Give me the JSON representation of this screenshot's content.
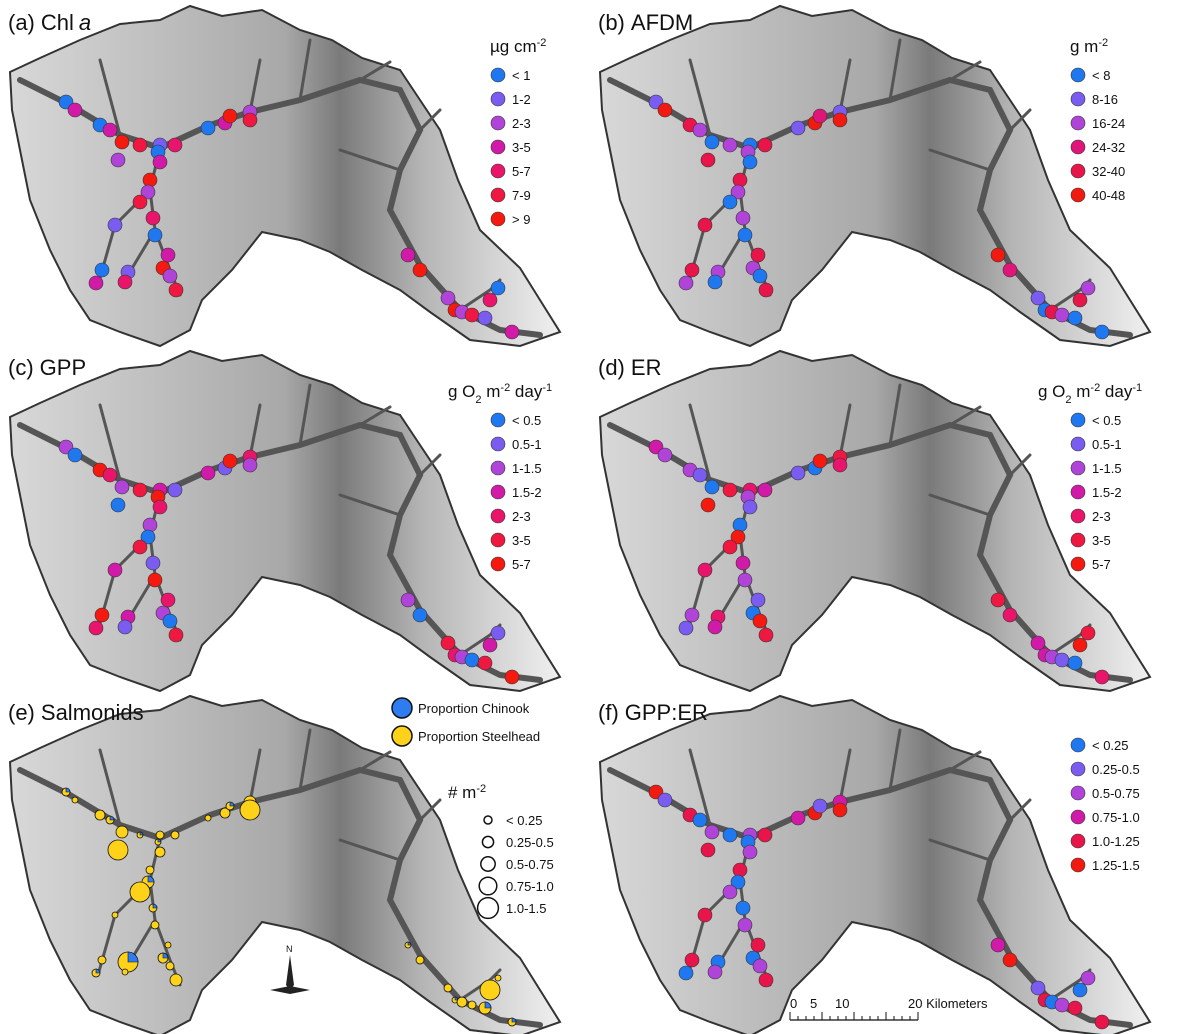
{
  "panels": [
    {
      "tag": "(a)",
      "title": "Chl",
      "title_italic": "a",
      "unit": [
        {
          "text": "µg cm"
        },
        {
          "sup": "-2"
        }
      ],
      "legend": [
        {
          "label": "< 1",
          "color": "#1f78f0"
        },
        {
          "label": "1-2",
          "color": "#7a5cf0"
        },
        {
          "label": "2-3",
          "color": "#b044d8"
        },
        {
          "label": "3-5",
          "color": "#d21aa8"
        },
        {
          "label": "5-7",
          "color": "#e8156a"
        },
        {
          "label": "7-9",
          "color": "#ee1840"
        },
        {
          "label": "> 9",
          "color": "#f51a10"
        }
      ]
    },
    {
      "tag": "(b)",
      "title": "AFDM",
      "unit": [
        {
          "text": "g m"
        },
        {
          "sup": "-2"
        }
      ],
      "legend": [
        {
          "label": "< 8",
          "color": "#1f78f0"
        },
        {
          "label": "8-16",
          "color": "#7a5cf0"
        },
        {
          "label": "16-24",
          "color": "#b044d8"
        },
        {
          "label": "24-32",
          "color": "#e0157a"
        },
        {
          "label": "32-40",
          "color": "#e8154a"
        },
        {
          "label": "40-48",
          "color": "#f01a10"
        }
      ]
    },
    {
      "tag": "(c)",
      "title": "GPP",
      "unit": [
        {
          "text": "g O"
        },
        {
          "sub": "2"
        },
        {
          "text": " m"
        },
        {
          "sup": "-2"
        },
        {
          "text": " day"
        },
        {
          "sup": "-1"
        }
      ],
      "legend": [
        {
          "label": "< 0.5",
          "color": "#1f78f0"
        },
        {
          "label": "0.5-1",
          "color": "#7a5cf0"
        },
        {
          "label": "1-1.5",
          "color": "#b044d8"
        },
        {
          "label": "1.5-2",
          "color": "#d21aa8"
        },
        {
          "label": "2-3",
          "color": "#e8156a"
        },
        {
          "label": "3-5",
          "color": "#ee1840"
        },
        {
          "label": "5-7",
          "color": "#f51a10"
        }
      ]
    },
    {
      "tag": "(d)",
      "title": "ER",
      "unit": [
        {
          "text": "g O"
        },
        {
          "sub": "2"
        },
        {
          "text": " m"
        },
        {
          "sup": "-2"
        },
        {
          "text": " day"
        },
        {
          "sup": "-1"
        }
      ],
      "legend": [
        {
          "label": "< 0.5",
          "color": "#1f78f0"
        },
        {
          "label": "0.5-1",
          "color": "#7a5cf0"
        },
        {
          "label": "1-1.5",
          "color": "#b044d8"
        },
        {
          "label": "1.5-2",
          "color": "#d21aa8"
        },
        {
          "label": "2-3",
          "color": "#e8156a"
        },
        {
          "label": "3-5",
          "color": "#ee1840"
        },
        {
          "label": "5-7",
          "color": "#f51a10"
        }
      ]
    },
    {
      "tag": "(e)",
      "title": "Salmonids",
      "pie_legend": [
        {
          "label": "Proportion Chinook",
          "color": "#2f7cf0"
        },
        {
          "label": "Proportion Steelhead",
          "color": "#ffd21a"
        }
      ],
      "unit": [
        {
          "text": "# m"
        },
        {
          "sup": "-2"
        }
      ],
      "size_legend": [
        "< 0.25",
        "0.25-0.5",
        "0.5-0.75",
        "0.75-1.0",
        "1.0-1.5"
      ]
    },
    {
      "tag": "(f)",
      "title": "GPP:ER",
      "legend": [
        {
          "label": "< 0.25",
          "color": "#1f78f0"
        },
        {
          "label": "0.25-0.5",
          "color": "#7a5cf0"
        },
        {
          "label": "0.5-0.75",
          "color": "#b044d8"
        },
        {
          "label": "0.75-1.0",
          "color": "#d21aa8"
        },
        {
          "label": "1.0-1.25",
          "color": "#e8154a"
        },
        {
          "label": "1.25-1.5",
          "color": "#f01a10"
        }
      ]
    }
  ],
  "north": "N",
  "scale_bar": [
    "0",
    "5",
    "10",
    "20 Kilometers"
  ]
}
